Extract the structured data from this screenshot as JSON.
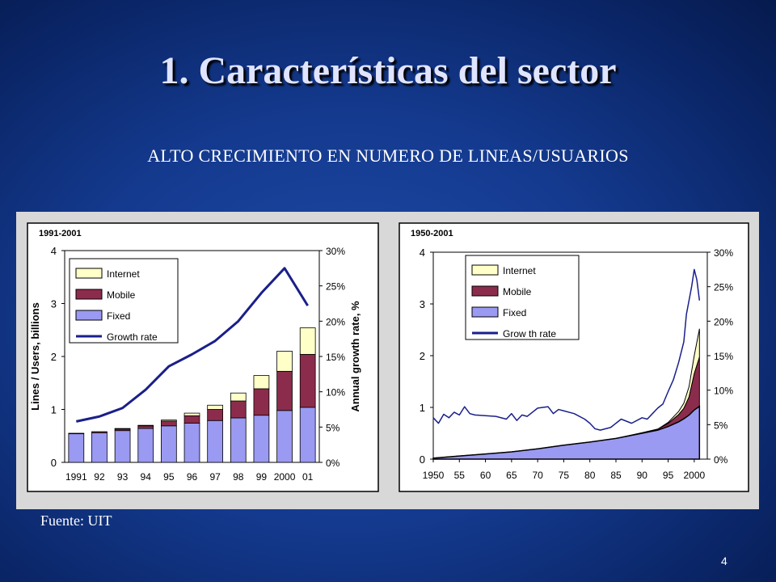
{
  "slide": {
    "title": "1. Características del sector",
    "subtitle": "ALTO CRECIMIENTO EN NUMERO DE LINEAS/USUARIOS",
    "source": "Fuente: UIT",
    "page_number": "4"
  },
  "colors": {
    "fixed": "#9a9af2",
    "mobile": "#8c2c4c",
    "internet": "#ffffc8",
    "growth": "#1a1f8a"
  },
  "chart_data": [
    {
      "type": "bar",
      "title": "1991-2001",
      "ylabel": "Lines / Users, billions",
      "y2label": "Annual growth rate, %",
      "ylim": [
        0,
        4
      ],
      "y2lim": [
        0,
        30
      ],
      "yticks": [
        "0",
        "1",
        "2",
        "3",
        "4"
      ],
      "y2ticks": [
        "0%",
        "5%",
        "10%",
        "15%",
        "20%",
        "25%",
        "30%"
      ],
      "categories": [
        "1991",
        "92",
        "93",
        "94",
        "95",
        "96",
        "97",
        "98",
        "99",
        "2000",
        "01"
      ],
      "legend": [
        "Internet",
        "Mobile",
        "Fixed",
        "Growth rate"
      ],
      "legend_position": "top-left",
      "series": [
        {
          "name": "Fixed",
          "values": [
            0.54,
            0.56,
            0.6,
            0.64,
            0.69,
            0.74,
            0.79,
            0.84,
            0.89,
            0.98,
            1.04
          ]
        },
        {
          "name": "Mobile",
          "values": [
            0.01,
            0.02,
            0.03,
            0.05,
            0.09,
            0.14,
            0.21,
            0.32,
            0.5,
            0.74,
            1.0
          ]
        },
        {
          "name": "Internet",
          "values": [
            0.0,
            0.0,
            0.01,
            0.01,
            0.02,
            0.05,
            0.08,
            0.15,
            0.25,
            0.38,
            0.5
          ]
        },
        {
          "name": "Growth rate",
          "axis": "right",
          "values": [
            5.8,
            6.5,
            7.7,
            10.3,
            13.6,
            15.3,
            17.2,
            20.0,
            24.0,
            27.5,
            22.2
          ]
        }
      ]
    },
    {
      "type": "area",
      "title": "1950-2001",
      "ylim": [
        0,
        4
      ],
      "y2lim": [
        0,
        30
      ],
      "yticks": [
        "0",
        "1",
        "2",
        "3",
        "4"
      ],
      "y2ticks": [
        "0%",
        "5%",
        "10%",
        "15%",
        "20%",
        "25%",
        "30%"
      ],
      "xticks": [
        "1950",
        "55",
        "60",
        "65",
        "70",
        "75",
        "80",
        "85",
        "90",
        "95",
        "2000"
      ],
      "legend": [
        "Internet",
        "Mobile",
        "Fixed",
        "Grow th rate"
      ],
      "legend_position": "top-left",
      "x": [
        1950,
        1955,
        1960,
        1965,
        1970,
        1975,
        1980,
        1985,
        1990,
        1993,
        1995,
        1997,
        1998,
        1999,
        2000,
        2001
      ],
      "series": [
        {
          "name": "Fixed",
          "values": [
            0.02,
            0.06,
            0.1,
            0.14,
            0.2,
            0.27,
            0.33,
            0.4,
            0.5,
            0.56,
            0.63,
            0.72,
            0.78,
            0.85,
            0.95,
            1.02
          ]
        },
        {
          "name": "Mobile",
          "values": [
            0,
            0,
            0,
            0,
            0,
            0,
            0,
            0,
            0.01,
            0.02,
            0.06,
            0.14,
            0.2,
            0.35,
            0.7,
            0.95
          ]
        },
        {
          "name": "Internet",
          "values": [
            0,
            0,
            0,
            0,
            0,
            0,
            0,
            0,
            0,
            0,
            0.02,
            0.06,
            0.1,
            0.2,
            0.35,
            0.55
          ]
        },
        {
          "name": "Grow th rate",
          "axis": "right",
          "x": [
            1950,
            1951,
            1952,
            1953,
            1954,
            1955,
            1956,
            1957,
            1958,
            1960,
            1962,
            1964,
            1965,
            1966,
            1967,
            1968,
            1970,
            1972,
            1973,
            1974,
            1975,
            1977,
            1979,
            1980,
            1981,
            1982,
            1984,
            1986,
            1988,
            1990,
            1991,
            1992,
            1993,
            1994,
            1995,
            1996,
            1997,
            1998,
            1998.5,
            1999,
            1999.5,
            2000,
            2000.5,
            2001
          ],
          "values": [
            6,
            5.2,
            6.5,
            6.0,
            6.8,
            6.4,
            7.6,
            6.6,
            6.4,
            6.3,
            6.2,
            5.8,
            6.6,
            5.6,
            6.4,
            6.2,
            7.4,
            7.6,
            6.6,
            7.2,
            7.0,
            6.6,
            5.8,
            5.2,
            4.4,
            4.2,
            4.6,
            5.8,
            5.2,
            6.0,
            5.8,
            6.6,
            7.4,
            8.0,
            9.8,
            11.5,
            14.0,
            17.0,
            21.0,
            23.0,
            25.0,
            27.5,
            26.0,
            23.0
          ]
        }
      ]
    }
  ]
}
